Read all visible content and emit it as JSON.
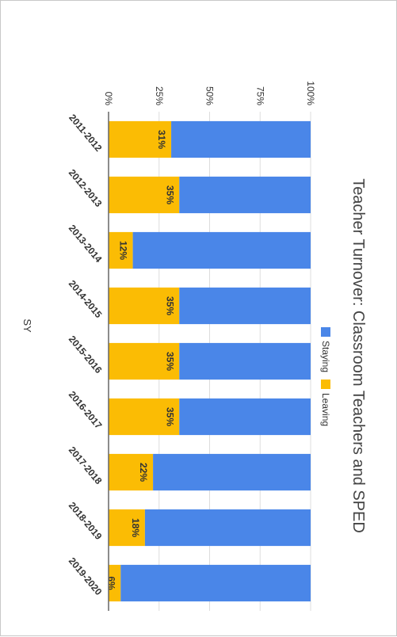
{
  "chart_data": {
    "type": "bar",
    "stacked": true,
    "percent_stacked": true,
    "orientation": "rotated-90-clockwise",
    "title": "Teacher Turnover: Classroom Teachers and SPED",
    "xlabel": "SY",
    "ylabel": "",
    "ylim": [
      0,
      100
    ],
    "yticks": [
      "0%",
      "25%",
      "50%",
      "75%",
      "100%"
    ],
    "categories": [
      "2011-2012",
      "2012-2013",
      "2013-2014",
      "2014-2015",
      "2015-2016",
      "2016-2017",
      "2017-2018",
      "2018-2019",
      "2019-2020"
    ],
    "series": [
      {
        "name": "Leaving",
        "color": "#fbbc04",
        "values": [
          31,
          35,
          12,
          35,
          35,
          35,
          22,
          18,
          6
        ],
        "labels": [
          "31%",
          "35%",
          "12%",
          "35%",
          "35%",
          "35%",
          "22%",
          "18%",
          "6%"
        ]
      },
      {
        "name": "Staying",
        "color": "#4a86e8",
        "values": [
          69,
          65,
          88,
          65,
          65,
          65,
          78,
          82,
          94
        ]
      }
    ],
    "legend": [
      "Staying",
      "Leaving"
    ],
    "legend_position": "top",
    "grid": true
  }
}
